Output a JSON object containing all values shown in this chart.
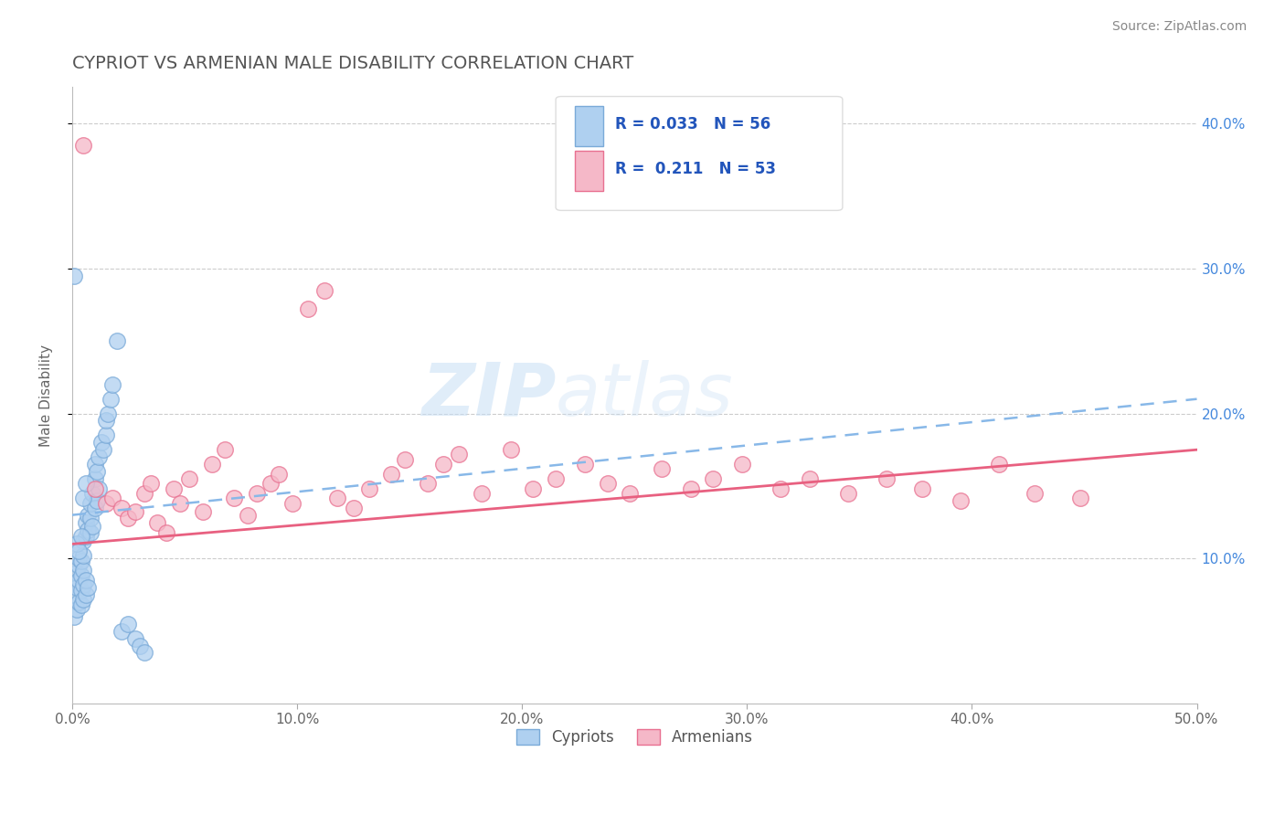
{
  "title": "CYPRIOT VS ARMENIAN MALE DISABILITY CORRELATION CHART",
  "source": "Source: ZipAtlas.com",
  "ylabel": "Male Disability",
  "xlim": [
    0.0,
    0.5
  ],
  "ylim": [
    0.0,
    0.425
  ],
  "xticks": [
    0.0,
    0.1,
    0.2,
    0.3,
    0.4,
    0.5
  ],
  "xtick_labels": [
    "0.0%",
    "10.0%",
    "20.0%",
    "30.0%",
    "40.0%",
    "50.0%"
  ],
  "yticks_right": [
    0.1,
    0.2,
    0.3,
    0.4
  ],
  "ytick_labels_right": [
    "10.0%",
    "20.0%",
    "30.0%",
    "40.0%"
  ],
  "grid_color": "#cccccc",
  "background_color": "#ffffff",
  "title_color": "#555555",
  "source_color": "#888888",
  "cypriot_color": "#afd0f0",
  "armenian_color": "#f5b8c8",
  "cypriot_edge": "#7aaad8",
  "armenian_edge": "#e87090",
  "cypriot_line_color": "#88b8e8",
  "armenian_line_color": "#e86080",
  "R_cypriot": 0.033,
  "N_cypriot": 56,
  "R_armenian": 0.211,
  "N_armenian": 53,
  "legend_label_cypriot": "Cypriots",
  "legend_label_armenian": "Armenians",
  "watermark_text": "ZIP",
  "watermark_text2": "atlas",
  "cypriot_x": [
    0.001,
    0.001,
    0.002,
    0.002,
    0.002,
    0.003,
    0.003,
    0.003,
    0.003,
    0.004,
    0.004,
    0.004,
    0.004,
    0.005,
    0.005,
    0.005,
    0.005,
    0.005,
    0.006,
    0.006,
    0.006,
    0.006,
    0.007,
    0.007,
    0.007,
    0.008,
    0.008,
    0.008,
    0.009,
    0.009,
    0.01,
    0.01,
    0.01,
    0.011,
    0.011,
    0.012,
    0.012,
    0.013,
    0.014,
    0.015,
    0.015,
    0.016,
    0.017,
    0.018,
    0.02,
    0.022,
    0.025,
    0.028,
    0.03,
    0.032,
    0.001,
    0.002,
    0.003,
    0.004,
    0.005,
    0.006
  ],
  "cypriot_y": [
    0.06,
    0.075,
    0.065,
    0.08,
    0.09,
    0.07,
    0.085,
    0.095,
    0.1,
    0.068,
    0.078,
    0.088,
    0.098,
    0.072,
    0.082,
    0.092,
    0.102,
    0.112,
    0.075,
    0.085,
    0.115,
    0.125,
    0.08,
    0.12,
    0.13,
    0.118,
    0.128,
    0.138,
    0.122,
    0.145,
    0.135,
    0.155,
    0.165,
    0.14,
    0.16,
    0.148,
    0.17,
    0.18,
    0.175,
    0.185,
    0.195,
    0.2,
    0.21,
    0.22,
    0.25,
    0.05,
    0.055,
    0.045,
    0.04,
    0.035,
    0.295,
    0.11,
    0.105,
    0.115,
    0.142,
    0.152
  ],
  "armenian_x": [
    0.005,
    0.01,
    0.015,
    0.018,
    0.022,
    0.025,
    0.028,
    0.032,
    0.035,
    0.038,
    0.042,
    0.045,
    0.048,
    0.052,
    0.058,
    0.062,
    0.068,
    0.072,
    0.078,
    0.082,
    0.088,
    0.092,
    0.098,
    0.105,
    0.112,
    0.118,
    0.125,
    0.132,
    0.142,
    0.148,
    0.158,
    0.165,
    0.172,
    0.182,
    0.195,
    0.205,
    0.215,
    0.228,
    0.238,
    0.248,
    0.262,
    0.275,
    0.285,
    0.298,
    0.315,
    0.328,
    0.345,
    0.362,
    0.378,
    0.395,
    0.412,
    0.428,
    0.448
  ],
  "armenian_y": [
    0.385,
    0.148,
    0.138,
    0.142,
    0.135,
    0.128,
    0.132,
    0.145,
    0.152,
    0.125,
    0.118,
    0.148,
    0.138,
    0.155,
    0.132,
    0.165,
    0.175,
    0.142,
    0.13,
    0.145,
    0.152,
    0.158,
    0.138,
    0.272,
    0.285,
    0.142,
    0.135,
    0.148,
    0.158,
    0.168,
    0.152,
    0.165,
    0.172,
    0.145,
    0.175,
    0.148,
    0.155,
    0.165,
    0.152,
    0.145,
    0.162,
    0.148,
    0.155,
    0.165,
    0.148,
    0.155,
    0.145,
    0.155,
    0.148,
    0.14,
    0.165,
    0.145,
    0.142
  ]
}
